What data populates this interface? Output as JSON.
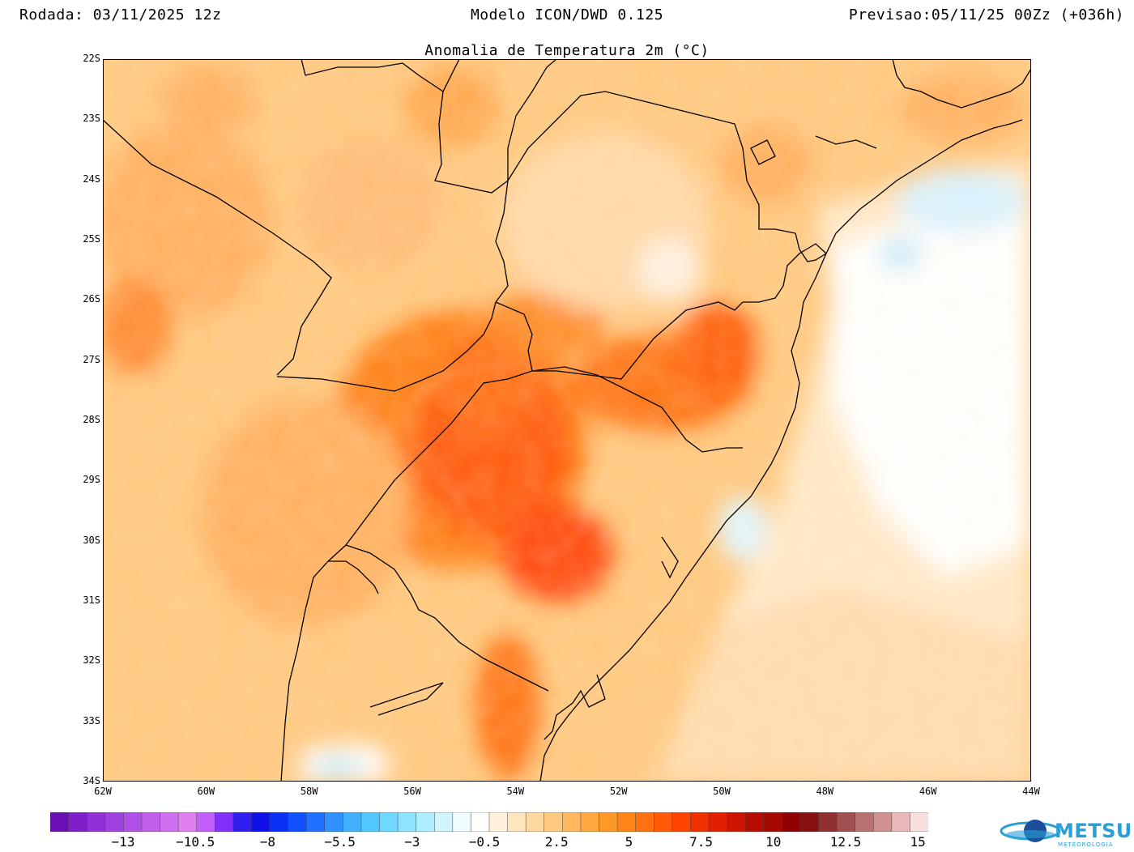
{
  "header": {
    "run": "Rodada: 03/11/2025 12z",
    "model": "Modelo ICON/DWD 0.125",
    "forecast": "Previsao:05/11/25 00Zz (+036h)"
  },
  "subtitle": "Anomalia de Temperatura 2m (°C)",
  "map": {
    "lat_labels": [
      "22S",
      "23S",
      "24S",
      "25S",
      "26S",
      "27S",
      "28S",
      "29S",
      "30S",
      "31S",
      "32S",
      "33S",
      "34S"
    ],
    "lon_labels": [
      "62W",
      "60W",
      "58W",
      "56W",
      "54W",
      "52W",
      "50W",
      "48W",
      "46W",
      "44W"
    ],
    "lat_range": [
      -34,
      -22
    ],
    "lon_range": [
      -62,
      -44
    ]
  },
  "colorbar": {
    "labels": [
      "-13",
      "-10.5",
      "-8",
      "-5.5",
      "-3",
      "-0.5",
      "2.5",
      "5",
      "7.5",
      "10",
      "12.5",
      "15"
    ],
    "colors": [
      "#6a0fb5",
      "#7e1fcb",
      "#9030d8",
      "#a040e0",
      "#b050e6",
      "#c060ea",
      "#d070ee",
      "#e080f0",
      "#c060f8",
      "#8030f8",
      "#3020f0",
      "#1010e8",
      "#0a30f5",
      "#1050ff",
      "#2070ff",
      "#3090ff",
      "#40b0ff",
      "#50c8ff",
      "#70d8ff",
      "#90e4ff",
      "#b0eeff",
      "#d0f5ff",
      "#f0fcff",
      "#ffffff",
      "#fff0dc",
      "#ffe4c0",
      "#ffd7a0",
      "#ffc880",
      "#ffb860",
      "#ffa840",
      "#ff9828",
      "#ff8418",
      "#ff7010",
      "#ff5a08",
      "#ff4404",
      "#f03000",
      "#e02000",
      "#cc1400",
      "#b80c00",
      "#a40800",
      "#900000",
      "#881010",
      "#903030",
      "#a05050",
      "#b87070",
      "#d09090",
      "#e8b8b8",
      "#f8e0e0"
    ]
  },
  "brand": {
    "name": "METSUL",
    "tagline": "METEOROLOGIA"
  }
}
